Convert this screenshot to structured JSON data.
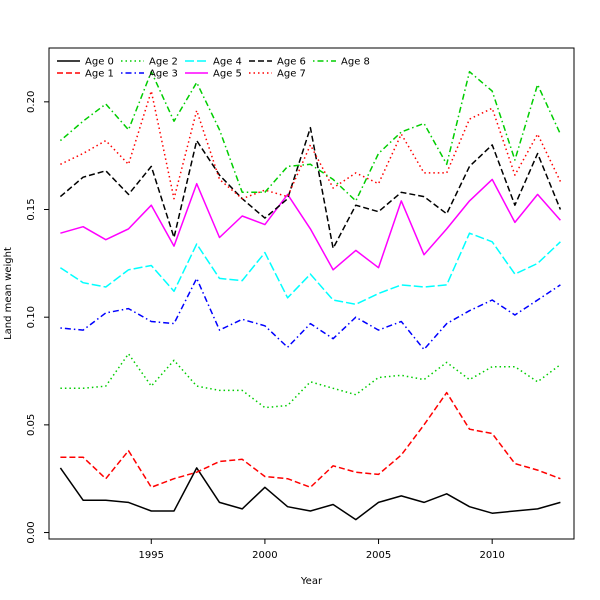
{
  "chart_data": {
    "type": "line",
    "title": "",
    "xlabel": "Year",
    "ylabel": "Land mean weight",
    "xlim": [
      1990.5,
      2013.6
    ],
    "ylim": [
      -0.003,
      0.225
    ],
    "x_ticks": [
      1995,
      2000,
      2005,
      2010
    ],
    "y_ticks": [
      0.0,
      0.05,
      0.1,
      0.15,
      0.2
    ],
    "y_tick_labels": [
      "0.00",
      "0.05",
      "0.10",
      "0.15",
      "0.20"
    ],
    "grid": false,
    "legend_position": "top-left",
    "x": [
      1991,
      1992,
      1993,
      1994,
      1995,
      1996,
      1997,
      1998,
      1999,
      2000,
      2001,
      2002,
      2003,
      2004,
      2005,
      2006,
      2007,
      2008,
      2009,
      2010,
      2011,
      2012,
      2013
    ],
    "series": [
      {
        "name": "Age 0",
        "color": "#000000",
        "dash": "solid",
        "values": [
          0.03,
          0.015,
          0.015,
          0.014,
          0.01,
          0.01,
          0.03,
          0.014,
          0.011,
          0.021,
          0.012,
          0.01,
          0.013,
          0.006,
          0.014,
          0.017,
          0.014,
          0.018,
          0.012,
          0.009,
          0.01,
          0.011,
          0.014
        ]
      },
      {
        "name": "Age 1",
        "color": "#ff0000",
        "dash": "dashed",
        "values": [
          0.035,
          0.035,
          0.025,
          0.038,
          0.021,
          0.025,
          0.028,
          0.033,
          0.034,
          0.026,
          0.025,
          0.021,
          0.031,
          0.028,
          0.027,
          0.036,
          0.05,
          0.065,
          0.048,
          0.046,
          0.032,
          0.029,
          0.025
        ]
      },
      {
        "name": "Age 2",
        "color": "#00cd00",
        "dash": "dotted",
        "values": [
          0.067,
          0.067,
          0.068,
          0.083,
          0.068,
          0.08,
          0.068,
          0.066,
          0.066,
          0.058,
          0.059,
          0.07,
          0.067,
          0.064,
          0.072,
          0.073,
          0.071,
          0.079,
          0.071,
          0.077,
          0.077,
          0.07,
          0.078
        ]
      },
      {
        "name": "Age 3",
        "color": "#0000ff",
        "dash": "dotdash",
        "values": [
          0.095,
          0.094,
          0.102,
          0.104,
          0.098,
          0.097,
          0.118,
          0.094,
          0.099,
          0.096,
          0.086,
          0.097,
          0.09,
          0.1,
          0.094,
          0.098,
          0.085,
          0.097,
          0.103,
          0.108,
          0.101,
          0.108,
          0.115
        ]
      },
      {
        "name": "Age 4",
        "color": "#00ffff",
        "dash": "longdash",
        "values": [
          0.123,
          0.116,
          0.114,
          0.122,
          0.124,
          0.112,
          0.134,
          0.118,
          0.117,
          0.13,
          0.109,
          0.12,
          0.108,
          0.106,
          0.111,
          0.115,
          0.114,
          0.115,
          0.139,
          0.135,
          0.12,
          0.125,
          0.135
        ]
      },
      {
        "name": "Age 5",
        "color": "#ff00ff",
        "dash": "solid",
        "values": [
          0.139,
          0.142,
          0.136,
          0.141,
          0.152,
          0.133,
          0.162,
          0.137,
          0.147,
          0.143,
          0.157,
          0.141,
          0.122,
          0.131,
          0.123,
          0.154,
          0.129,
          0.141,
          0.154,
          0.164,
          0.144,
          0.157,
          0.145
        ]
      },
      {
        "name": "Age 6",
        "color": "#000000",
        "dash": "dashed",
        "values": [
          0.156,
          0.165,
          0.168,
          0.157,
          0.17,
          0.137,
          0.182,
          0.166,
          0.155,
          0.146,
          0.155,
          0.188,
          0.132,
          0.152,
          0.149,
          0.158,
          0.156,
          0.148,
          0.17,
          0.18,
          0.152,
          0.176,
          0.15
        ]
      },
      {
        "name": "Age 7",
        "color": "#ff0000",
        "dash": "dotted",
        "values": [
          0.171,
          0.176,
          0.182,
          0.171,
          0.205,
          0.155,
          0.196,
          0.164,
          0.155,
          0.159,
          0.156,
          0.18,
          0.16,
          0.167,
          0.162,
          0.185,
          0.167,
          0.167,
          0.192,
          0.197,
          0.166,
          0.185,
          0.163
        ]
      },
      {
        "name": "Age 8",
        "color": "#00cd00",
        "dash": "dotdash",
        "values": [
          0.182,
          0.191,
          0.199,
          0.187,
          0.214,
          0.191,
          0.209,
          0.187,
          0.158,
          0.158,
          0.17,
          0.171,
          0.164,
          0.154,
          0.176,
          0.186,
          0.19,
          0.171,
          0.214,
          0.205,
          0.173,
          0.208,
          0.185
        ]
      }
    ]
  }
}
